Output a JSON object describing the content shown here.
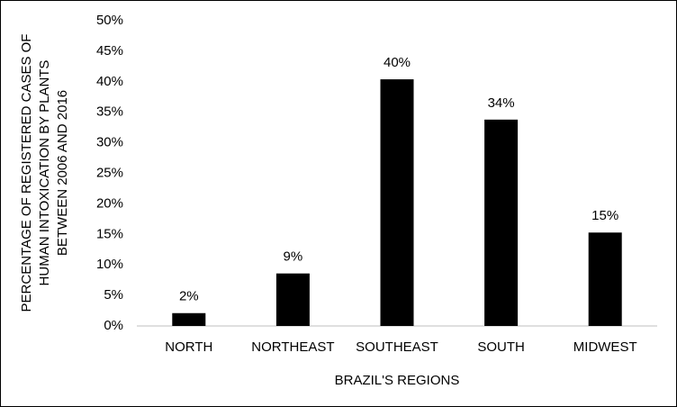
{
  "chart_data": {
    "type": "bar",
    "ylabel": [
      "PERCENTAGE OF REGISTERED CASES OF",
      "HUMAN INTOXICATION BY PLANTS",
      "BETWEEN 2006 AND 2016"
    ],
    "xlabel": "BRAZIL'S REGIONS",
    "categories": [
      "NORTH",
      "NORTHEAST",
      "SOUTHEAST",
      "SOUTH",
      "MIDWEST"
    ],
    "values": [
      2.1,
      8.6,
      40.4,
      33.8,
      15.3
    ],
    "value_labels": [
      "2%",
      "9%",
      "40%",
      "34%",
      "15%"
    ],
    "color": "#000000",
    "ylim": [
      0,
      50
    ],
    "yticks": [
      {
        "value": 0,
        "label": "0%"
      },
      {
        "value": 5,
        "label": "5%"
      },
      {
        "value": 10,
        "label": "10%"
      },
      {
        "value": 15,
        "label": "15%"
      },
      {
        "value": 20,
        "label": "20%"
      },
      {
        "value": 25,
        "label": "25%"
      },
      {
        "value": 30,
        "label": "30%"
      },
      {
        "value": 35,
        "label": "35%"
      },
      {
        "value": 40,
        "label": "40%"
      },
      {
        "value": 45,
        "label": "45%"
      },
      {
        "value": 50,
        "label": "50%"
      }
    ],
    "grid": false
  }
}
